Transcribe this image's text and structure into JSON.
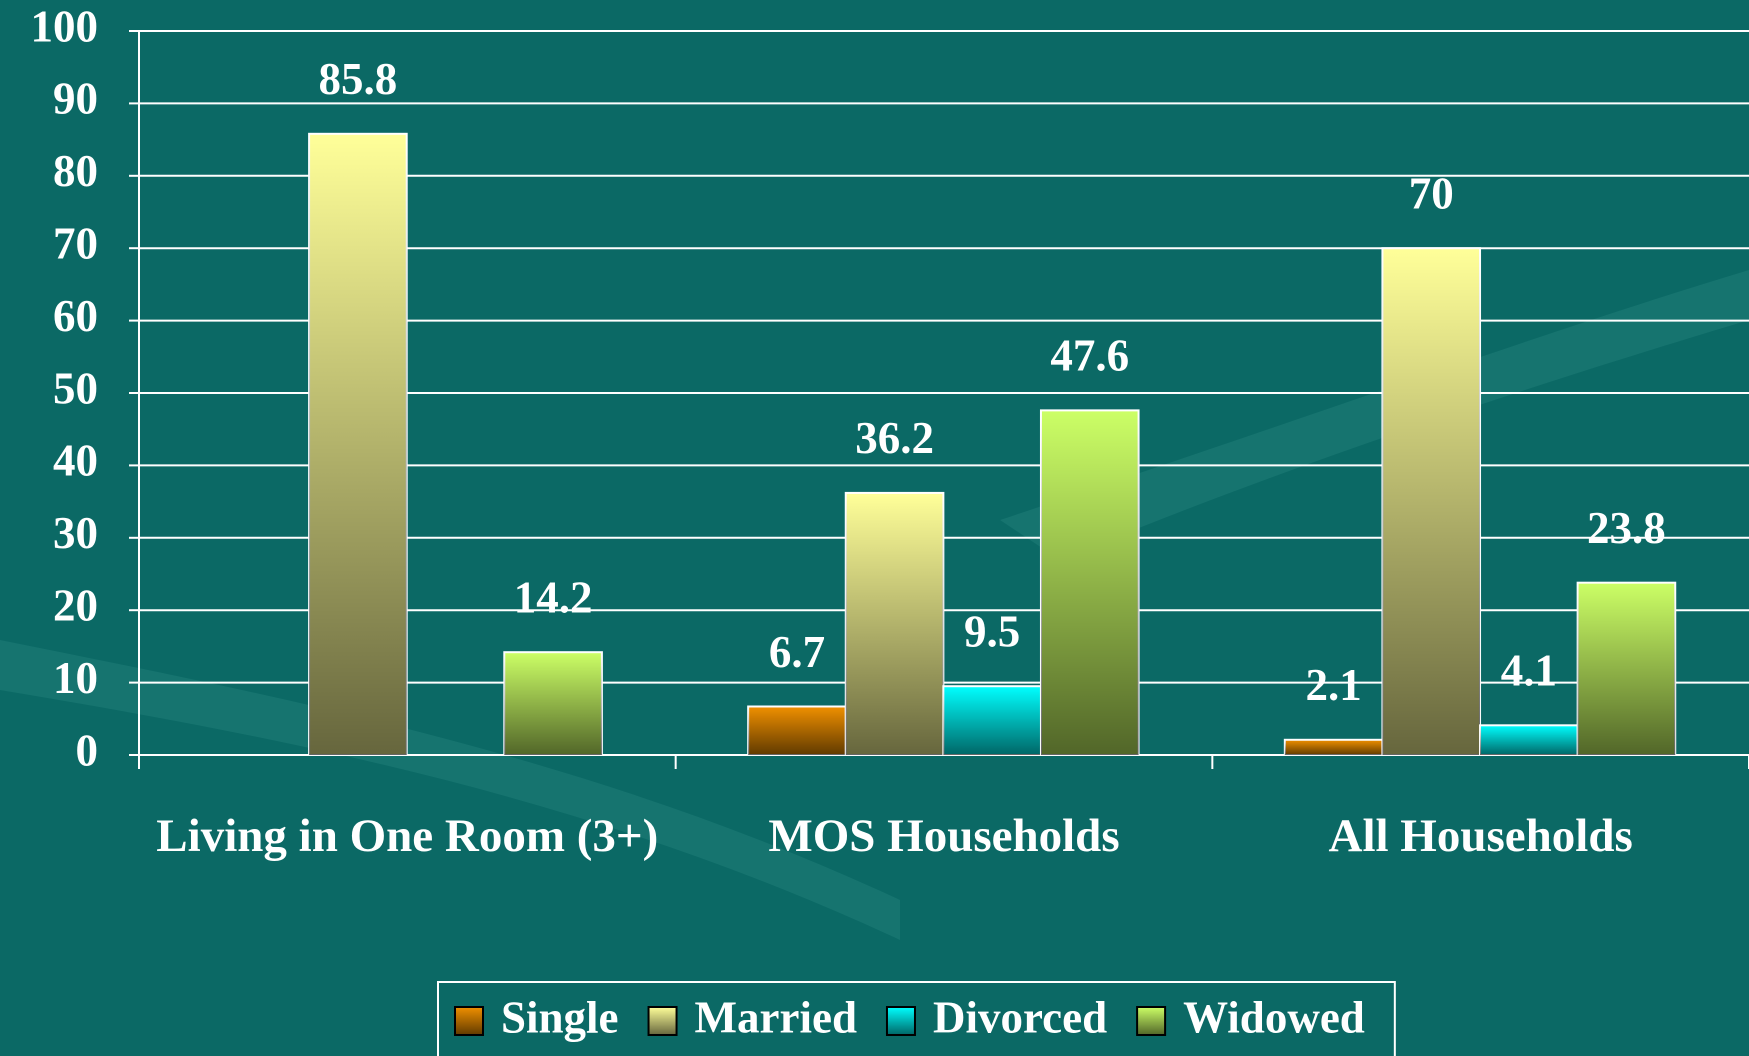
{
  "chart_data": {
    "type": "bar",
    "categories": [
      "Living in One Room (3+)",
      "MOS Households",
      "All Households"
    ],
    "series": [
      {
        "name": "Single",
        "color": "#f09000",
        "values": [
          null,
          6.7,
          2.1
        ]
      },
      {
        "name": "Married",
        "color": "#ffff99",
        "values": [
          85.8,
          36.2,
          70
        ]
      },
      {
        "name": "Divorced",
        "color": "#00ffff",
        "values": [
          null,
          9.5,
          4.1
        ]
      },
      {
        "name": "Widowed",
        "color": "#ccff66",
        "values": [
          14.2,
          47.6,
          23.8
        ]
      }
    ],
    "ylim": [
      0,
      100
    ],
    "yticks": [
      0,
      10,
      20,
      30,
      40,
      50,
      60,
      70,
      80,
      90,
      100
    ],
    "grid": true,
    "legend": "bottom"
  }
}
